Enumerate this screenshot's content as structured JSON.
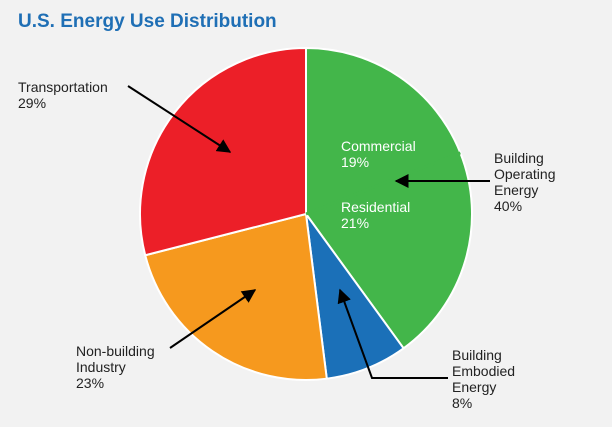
{
  "chart_data": {
    "type": "pie",
    "title": "U.S. Energy Use Distribution",
    "slices": [
      {
        "label": "Commercial",
        "value": 19,
        "color": "#43b64a"
      },
      {
        "label": "Residential",
        "value": 21,
        "color": "#43b64a"
      },
      {
        "label": "Building Embodied Energy",
        "value": 8,
        "color": "#1b70b8"
      },
      {
        "label": "Non-building Industry",
        "value": 23,
        "color": "#f6991e"
      },
      {
        "label": "Transportation",
        "value": 29,
        "color": "#ec1f28"
      }
    ],
    "groups": [
      {
        "label": "Building Operating Energy",
        "value": 40,
        "members": [
          "Commercial",
          "Residential"
        ]
      }
    ],
    "labels": {
      "transportation": {
        "lines": [
          "Transportation",
          "29%"
        ]
      },
      "commercial": {
        "lines": [
          "Commercial",
          "19%"
        ]
      },
      "residential": {
        "lines": [
          "Residential",
          "21%"
        ]
      },
      "operating": {
        "lines": [
          "Building",
          "Operating",
          "Energy",
          "40%"
        ]
      },
      "nonbuilding": {
        "lines": [
          "Non-building",
          "Industry",
          "23%"
        ]
      },
      "embodied": {
        "lines": [
          "Building",
          "Embodied",
          "Energy",
          "8%"
        ]
      }
    }
  }
}
